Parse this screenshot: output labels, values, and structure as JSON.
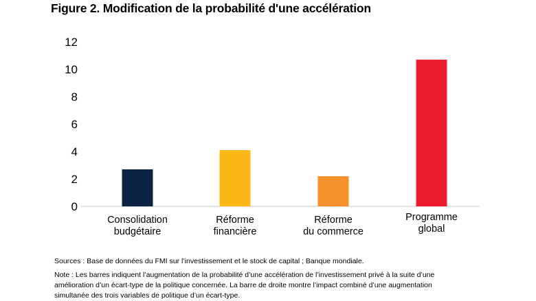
{
  "figure": {
    "title": "Figure 2. Modification de la probabilité d'une accélération",
    "sources": "Sources : Base de données du FMI sur l’investissement et le stock de capital ; Banque mondiale.",
    "note_line1": "Note : Les barres indiquent l’augmentation de la probabilité d’une accélération de l’investissement privé à la suite d’une",
    "note_line2": "amélioration d’un écart-type de la politique concernée. La barre de droite montre l’impact combiné d’une augmentation",
    "note_line3": "simultanée des trois variables de politique d’un écart-type."
  },
  "chart_data": {
    "type": "bar",
    "title": "Figure 2. Modification de la probabilité d'une accélération",
    "xlabel": "",
    "ylabel": "",
    "ylim": [
      0,
      12
    ],
    "yticks": [
      "0",
      "2",
      "4",
      "6",
      "8",
      "10",
      "12"
    ],
    "grid": false,
    "categories": [
      [
        "Consolidation",
        "budgétaire"
      ],
      [
        "Réforme",
        "financière"
      ],
      [
        "Réforme",
        "du commerce"
      ],
      [
        "Programme",
        "global"
      ]
    ],
    "values": [
      2.7,
      4.1,
      2.2,
      10.7
    ],
    "colors": [
      "#0d2344",
      "#fbb917",
      "#f5902a",
      "#ed1c2e"
    ]
  }
}
